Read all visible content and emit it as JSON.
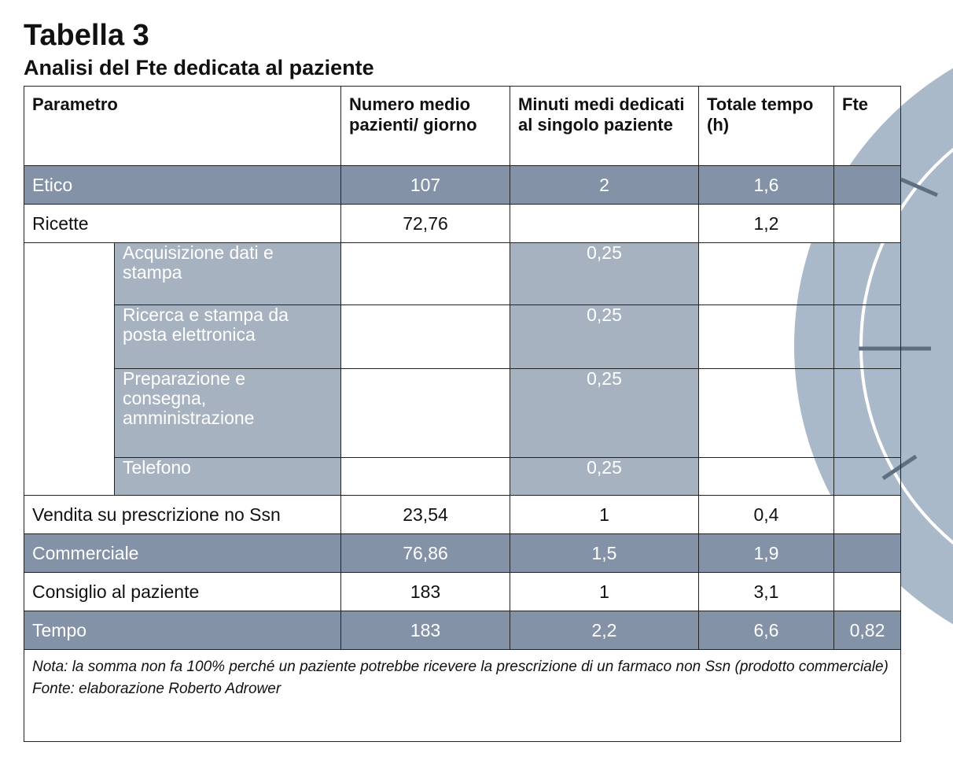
{
  "title": "Tabella 3",
  "subtitle": "Analisi del Fte dedicata al paziente",
  "table": {
    "headers": {
      "parametro": "Parametro",
      "numero": "Numero medio pazienti/ giorno",
      "minuti": "Minuti medi dedicati al singolo paziente",
      "totale": "Totale tempo (h)",
      "fte": "Fte"
    },
    "rows": {
      "etico": {
        "label": "Etico",
        "numero": "107",
        "minuti": "2",
        "totale": "1,6",
        "fte": ""
      },
      "ricette": {
        "label": "Ricette",
        "numero": "72,76",
        "minuti": "",
        "totale": "1,2",
        "fte": ""
      },
      "sub": [
        {
          "label": "Acquisizione dati e stampa",
          "minuti": "0,25"
        },
        {
          "label": "Ricerca e stampa da posta elettronica",
          "minuti": "0,25"
        },
        {
          "label": "Preparazione e consegna, amministrazione",
          "minuti": "0,25"
        },
        {
          "label": "Telefono",
          "minuti": "0,25"
        }
      ],
      "vendita": {
        "label": "Vendita su prescrizione no Ssn",
        "numero": "23,54",
        "minuti": "1",
        "totale": "0,4",
        "fte": ""
      },
      "commerciale": {
        "label": "Commerciale",
        "numero": "76,86",
        "minuti": "1,5",
        "totale": "1,9",
        "fte": ""
      },
      "consiglio": {
        "label": "Consiglio al paziente",
        "numero": "183",
        "minuti": "1",
        "totale": "3,1",
        "fte": ""
      },
      "tempo": {
        "label": "Tempo",
        "numero": "183",
        "minuti": "2,2",
        "totale": "6,6",
        "fte": "0,82"
      }
    },
    "note": "Nota: la somma non fa 100% perché un paziente potrebbe ricevere la prescrizione di un farmaco non Ssn (prodotto commerciale)",
    "source": "Fonte: elaborazione Roberto Adrower"
  },
  "colors": {
    "dark_row": "#8492a8",
    "sub_row": "#a7b2c1",
    "decoration": "#a9b9c9"
  }
}
